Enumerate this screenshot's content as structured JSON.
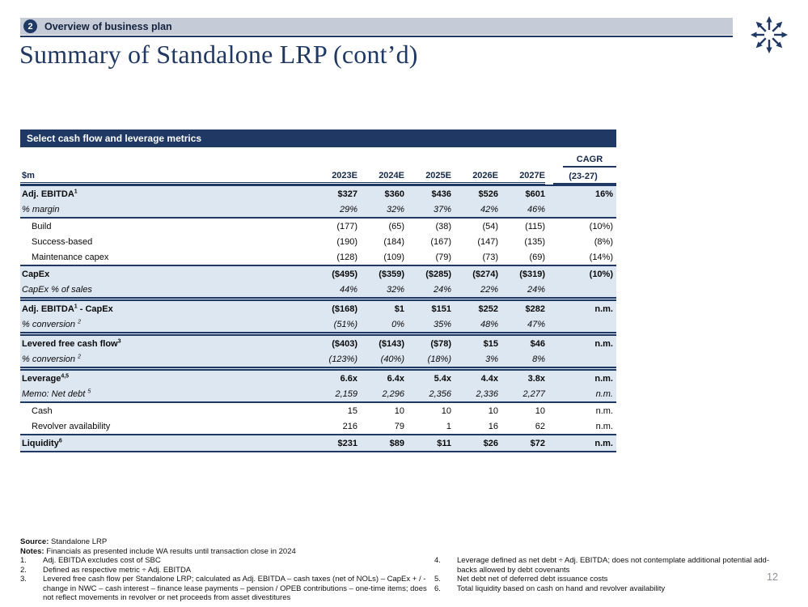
{
  "colors": {
    "navy": "#1f3864",
    "row_band_blue": "#dde7f2",
    "topbar_gray": "#c5cbd7",
    "page_number_gray": "#8f9399"
  },
  "header": {
    "section_number": "2",
    "section_title": "Overview of business plan",
    "page_title": "Summary of Standalone LRP (cont’d)",
    "logo_icon": "starburst-arrows-icon"
  },
  "table": {
    "title": "Select cash flow and leverage metrics",
    "unit_label": "$m",
    "cagr_label": "CAGR",
    "cagr_sublabel": "(23-27)",
    "years": [
      "2023E",
      "2024E",
      "2025E",
      "2026E",
      "2027E"
    ],
    "rows": [
      {
        "pre": "Adj. EBITDA",
        "sup": "1",
        "post": "",
        "type": "primary",
        "rule": "thick",
        "values": [
          "$327",
          "$360",
          "$436",
          "$526",
          "$601",
          "16%"
        ]
      },
      {
        "pre": "% margin",
        "type": "secondary",
        "values": [
          "29%",
          "32%",
          "37%",
          "42%",
          "46%",
          ""
        ]
      },
      {
        "pre": "Build",
        "type": "detail",
        "rule": "thick",
        "values": [
          "(177)",
          "(65)",
          "(38)",
          "(54)",
          "(115)",
          "(10%)"
        ]
      },
      {
        "pre": "Success-based",
        "type": "detail",
        "values": [
          "(190)",
          "(184)",
          "(167)",
          "(147)",
          "(135)",
          "(8%)"
        ]
      },
      {
        "pre": "Maintenance capex",
        "type": "detail",
        "values": [
          "(128)",
          "(109)",
          "(79)",
          "(73)",
          "(69)",
          "(14%)"
        ]
      },
      {
        "pre": "CapEx",
        "type": "primary",
        "rule": "thick",
        "values": [
          "($495)",
          "($359)",
          "($285)",
          "($274)",
          "($319)",
          "(10%)"
        ]
      },
      {
        "pre": "CapEx % of sales",
        "type": "secondary",
        "values": [
          "44%",
          "32%",
          "24%",
          "22%",
          "24%",
          ""
        ]
      },
      {
        "pre": "Adj. EBITDA",
        "sup": "1",
        "post": " - CapEx",
        "type": "primary",
        "rule": "double",
        "values": [
          "($168)",
          "$1",
          "$151",
          "$252",
          "$282",
          "n.m."
        ]
      },
      {
        "pre": "% conversion ",
        "sup": "2",
        "type": "secondary",
        "values": [
          "(51%)",
          "0%",
          "35%",
          "48%",
          "47%",
          ""
        ]
      },
      {
        "pre": "Levered free cash flow",
        "sup": "3",
        "type": "primary",
        "rule": "double",
        "values": [
          "($403)",
          "($143)",
          "($78)",
          "$15",
          "$46",
          "n.m."
        ]
      },
      {
        "pre": "% conversion ",
        "sup": "2",
        "type": "secondary",
        "values": [
          "(123%)",
          "(40%)",
          "(18%)",
          "3%",
          "8%",
          ""
        ]
      },
      {
        "pre": "Leverage",
        "sup": "4,5",
        "type": "primary",
        "rule": "double",
        "values": [
          "6.6x",
          "6.4x",
          "5.4x",
          "4.4x",
          "3.8x",
          "n.m."
        ]
      },
      {
        "pre": "Memo: Net debt ",
        "sup": "5",
        "type": "secondary",
        "values": [
          "2,159",
          "2,296",
          "2,356",
          "2,336",
          "2,277",
          "n.m."
        ]
      },
      {
        "pre": "Cash",
        "type": "detail",
        "rule": "thick",
        "values": [
          "15",
          "10",
          "10",
          "10",
          "10",
          "n.m."
        ]
      },
      {
        "pre": "Revolver availability",
        "type": "detail",
        "values": [
          "216",
          "79",
          "1",
          "16",
          "62",
          "n.m."
        ]
      },
      {
        "pre": "Liquidity",
        "sup": "6",
        "type": "primary",
        "rule": "thick",
        "last": true,
        "values": [
          "$231",
          "$89",
          "$11",
          "$26",
          "$72",
          "n.m."
        ]
      }
    ]
  },
  "footnotes": {
    "source_label": "Source:",
    "source_text": "Standalone LRP",
    "notes_label": "Notes:",
    "notes_text": "Financials as presented include WA results until transaction close in 2024",
    "left_items": [
      {
        "num": "1.",
        "text": "Adj. EBITDA excludes cost of SBC"
      },
      {
        "num": "2.",
        "text": "Defined as respective metric ÷ Adj. EBITDA"
      },
      {
        "num": "3.",
        "text": "Levered free cash flow per Standalone LRP; calculated as Adj. EBITDA – cash taxes (net of NOLs) – CapEx + / - change in NWC – cash interest – finance lease payments – pension / OPEB contributions – one-time items; does not reflect movements in revolver or net proceeds from asset divestitures"
      }
    ],
    "right_items": [
      {
        "num": "4.",
        "text": "Leverage defined as net debt ÷ Adj. EBITDA; does not contemplate additional potential add-backs allowed by debt covenants"
      },
      {
        "num": "5.",
        "text": "Net debt net of deferred debt issuance costs"
      },
      {
        "num": "6.",
        "text": "Total liquidity based on cash on hand and revolver availability"
      }
    ]
  },
  "page_number": "12"
}
